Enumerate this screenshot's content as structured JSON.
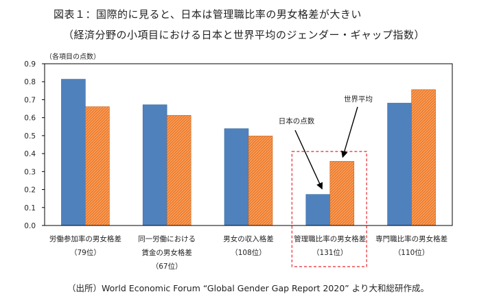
{
  "title_line1": "図表１：国際的に見ると、日本は管理職比率の男女格差が大きい",
  "title_line2": "（経済分野の小項目における日本と世界平均のジェンダー・ギャップ指数）",
  "source_note": "（出所）World Economic Forum “Global Gender Gap Report 2020” より大和総研作成。",
  "colors": {
    "japan": "#4f81bd",
    "world": "#f07f2e",
    "highlight": "#e8262b"
  },
  "chart_data": {
    "type": "bar",
    "title": "図表１：国際的に見ると、日本は管理職比率の男女格差が大きい",
    "ylabel": "（各項目の点数）",
    "ylim": [
      0,
      0.9
    ],
    "yticks": [
      "0.0",
      "0.1",
      "0.2",
      "0.3",
      "0.4",
      "0.5",
      "0.6",
      "0.7",
      "0.8",
      "0.9"
    ],
    "grid": false,
    "categories": [
      {
        "lines": [
          "労働参加率の男女格差",
          "（79位）"
        ]
      },
      {
        "lines": [
          "同一労働における",
          "賃金の男女格差",
          "（67位）"
        ]
      },
      {
        "lines": [
          "男女の収入格差",
          "（108位）"
        ]
      },
      {
        "lines": [
          "管理職比率の男女格差",
          "（131位）"
        ]
      },
      {
        "lines": [
          "専門職比率の男女格差",
          "（110位）"
        ]
      }
    ],
    "series": [
      {
        "name": "日本の点数",
        "values": [
          0.814,
          0.672,
          0.539,
          0.173,
          0.681
        ]
      },
      {
        "name": "世界平均",
        "values": [
          0.661,
          0.613,
          0.498,
          0.357,
          0.756
        ]
      }
    ],
    "annotations": [
      {
        "text": "日本の点数",
        "points_to": "管理職比率の男女格差 / 日本の点数"
      },
      {
        "text": "世界平均",
        "points_to": "管理職比率の男女格差 / 世界平均"
      }
    ],
    "highlight_category": 3
  }
}
